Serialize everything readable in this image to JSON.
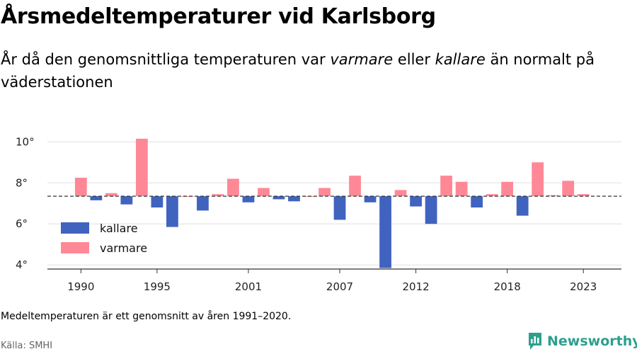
{
  "title": "Årsmedeltemperaturer vid Karlsborg",
  "subtitle": {
    "part1": "År då den genomsnittliga temperaturen var ",
    "warm_word": "varmare",
    "part2": " eller ",
    "cold_word": "kallare",
    "part3": " än normalt på väderstationen"
  },
  "note": "Medeltemperaturen är ett genomsnitt av åren 1991–2020.",
  "source": "Källa: SMHI",
  "brand": "Newsworthy",
  "colors": {
    "kallare": "#4063bf",
    "varmare": "#ff8896",
    "grid": "#e0e0e0",
    "axis": "#333333",
    "brand": "#2e9f8e"
  },
  "chart_data": {
    "type": "bar",
    "baseline": 7.35,
    "ylim": [
      3.8,
      10.7
    ],
    "yticks": [
      4,
      6,
      8,
      10
    ],
    "ytick_labels": [
      "4°",
      "6°",
      "8°",
      "10°"
    ],
    "xlim": [
      1987.8,
      2025.5
    ],
    "xticks": [
      1990,
      1995,
      2001,
      2007,
      2012,
      2018,
      2023
    ],
    "xtick_labels": [
      "1990",
      "1995",
      "2001",
      "2007",
      "2012",
      "2018",
      "2023"
    ],
    "legend": [
      {
        "key": "kallare",
        "label": "kallare"
      },
      {
        "key": "varmare",
        "label": "varmare"
      }
    ],
    "legend_position": "bottom-left",
    "grid": true,
    "data": [
      {
        "year": 1990,
        "value": 8.25
      },
      {
        "year": 1991,
        "value": 7.15
      },
      {
        "year": 1992,
        "value": 7.5
      },
      {
        "year": 1993,
        "value": 6.95
      },
      {
        "year": 1994,
        "value": 10.15
      },
      {
        "year": 1995,
        "value": 6.8
      },
      {
        "year": 1996,
        "value": 5.85
      },
      {
        "year": 1997,
        "value": 7.35
      },
      {
        "year": 1998,
        "value": 6.65
      },
      {
        "year": 1999,
        "value": 7.45
      },
      {
        "year": 2000,
        "value": 8.2
      },
      {
        "year": 2001,
        "value": 7.05
      },
      {
        "year": 2002,
        "value": 7.75
      },
      {
        "year": 2003,
        "value": 7.2
      },
      {
        "year": 2004,
        "value": 7.1
      },
      {
        "year": 2005,
        "value": 7.35
      },
      {
        "year": 2006,
        "value": 7.75
      },
      {
        "year": 2007,
        "value": 6.2
      },
      {
        "year": 2008,
        "value": 8.35
      },
      {
        "year": 2009,
        "value": 7.05
      },
      {
        "year": 2010,
        "value": 3.85
      },
      {
        "year": 2011,
        "value": 7.65
      },
      {
        "year": 2012,
        "value": 6.85
      },
      {
        "year": 2013,
        "value": 6.0
      },
      {
        "year": 2014,
        "value": 8.35
      },
      {
        "year": 2015,
        "value": 8.05
      },
      {
        "year": 2016,
        "value": 6.8
      },
      {
        "year": 2017,
        "value": 7.45
      },
      {
        "year": 2018,
        "value": 8.05
      },
      {
        "year": 2019,
        "value": 6.4
      },
      {
        "year": 2020,
        "value": 9.0
      },
      {
        "year": 2021,
        "value": 7.4
      },
      {
        "year": 2022,
        "value": 8.1
      },
      {
        "year": 2023,
        "value": 7.45
      }
    ]
  }
}
